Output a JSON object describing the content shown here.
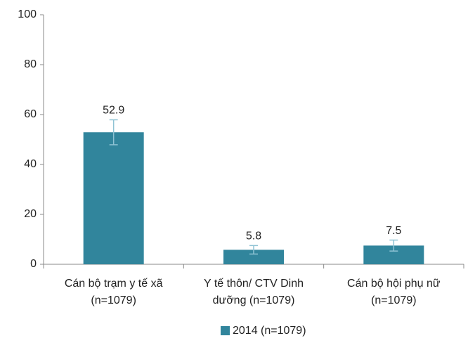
{
  "chart_data": {
    "type": "bar",
    "categories": [
      [
        "Cán bộ trạm y tế xã",
        "(n=1079)"
      ],
      [
        "Y tế thôn/ CTV Dinh",
        "dưỡng (n=1079)"
      ],
      [
        "Cán bộ hội phụ nữ",
        "(n=1079)"
      ]
    ],
    "series": [
      {
        "name": "2014 (n=1079)",
        "color": "#31859c",
        "values": [
          52.9,
          5.8,
          7.5
        ],
        "errors": [
          5,
          1.7,
          2.2
        ]
      }
    ],
    "error_color": "#8fc3d4",
    "ylim": [
      0,
      100
    ],
    "yticks": [
      0,
      20,
      40,
      60,
      80,
      100
    ],
    "grid": false,
    "legend": "bottom"
  }
}
